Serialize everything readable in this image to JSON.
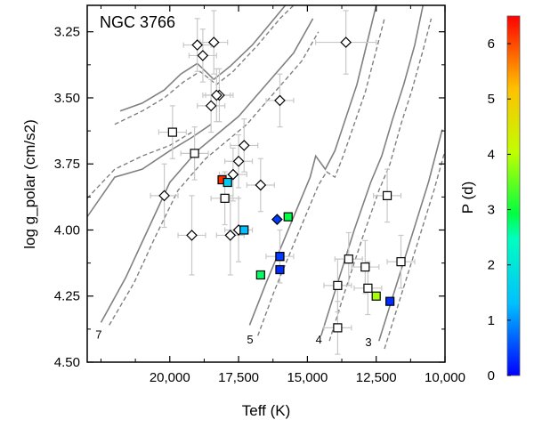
{
  "chart_data": {
    "type": "scatter",
    "title": "NGC 3766",
    "xlabel": "Teff (K)",
    "ylabel": "log g_polar (cm/s2)",
    "colorbar_label": "P (d)",
    "xlim": [
      23000,
      10000
    ],
    "ylim": [
      4.5,
      3.15
    ],
    "x_reversed": true,
    "y_reversed": true,
    "x_ticks": [
      20000,
      17500,
      15000,
      12500,
      10000
    ],
    "x_tick_labels": [
      "20,000",
      "17,500",
      "15,000",
      "12,500",
      "10,000"
    ],
    "y_ticks": [
      3.25,
      3.5,
      3.75,
      4.0,
      4.25,
      4.5
    ],
    "y_tick_labels": [
      "3.25",
      "3.50",
      "3.75",
      "4.00",
      "4.25",
      "4.50"
    ],
    "colorbar_range": [
      0,
      6.5
    ],
    "colorbar_ticks": [
      0,
      1,
      2,
      3,
      4,
      5,
      6
    ],
    "colorbar_tick_labels": [
      "0",
      "1",
      "2",
      "3",
      "4",
      "5",
      "6"
    ],
    "track_labels": [
      {
        "text": "7",
        "x": 22700,
        "y": 4.41
      },
      {
        "text": "5",
        "x": 17200,
        "y": 4.43
      },
      {
        "text": "4",
        "x": 14700,
        "y": 4.43
      },
      {
        "text": "3",
        "x": 12900,
        "y": 4.44
      }
    ],
    "tracks": {
      "solid": [
        [
          [
            22500,
            4.35
          ],
          [
            21600,
            4.18
          ],
          [
            20800,
            4.0
          ],
          [
            20000,
            3.82
          ],
          [
            19000,
            3.7
          ],
          [
            17500,
            3.57
          ],
          [
            16500,
            3.45
          ],
          [
            15500,
            3.33
          ],
          [
            14800,
            3.2
          ]
        ],
        [
          [
            17100,
            4.36
          ],
          [
            16500,
            4.2
          ],
          [
            15900,
            4.05
          ],
          [
            15300,
            3.9
          ],
          [
            14900,
            3.8
          ],
          [
            14700,
            3.72
          ],
          [
            14350,
            3.77
          ],
          [
            14000,
            3.7
          ],
          [
            13200,
            3.45
          ],
          [
            12500,
            3.15
          ]
        ],
        [
          [
            14500,
            4.4
          ],
          [
            13900,
            4.2
          ],
          [
            13300,
            4.0
          ],
          [
            12700,
            3.82
          ],
          [
            12300,
            3.72
          ],
          [
            11900,
            3.58
          ],
          [
            11500,
            3.45
          ],
          [
            11100,
            3.3
          ],
          [
            10800,
            3.15
          ]
        ],
        [
          [
            12400,
            4.42
          ],
          [
            11800,
            4.22
          ],
          [
            11200,
            4.02
          ],
          [
            10600,
            3.82
          ],
          [
            10100,
            3.62
          ]
        ],
        [
          [
            21800,
            3.55
          ],
          [
            21000,
            3.52
          ],
          [
            20200,
            3.47
          ],
          [
            19600,
            3.41
          ],
          [
            19000,
            3.37
          ],
          [
            18400,
            3.43
          ],
          [
            17800,
            3.38
          ],
          [
            17000,
            3.3
          ],
          [
            16200,
            3.2
          ],
          [
            15800,
            3.15
          ]
        ],
        [
          [
            23000,
            3.95
          ],
          [
            22000,
            3.8
          ],
          [
            21000,
            3.77
          ],
          [
            20000,
            3.7
          ],
          [
            19200,
            3.65
          ],
          [
            18500,
            3.6
          ]
        ]
      ],
      "dashed": [
        [
          [
            22200,
            4.36
          ],
          [
            21300,
            4.2
          ],
          [
            20500,
            4.02
          ],
          [
            19700,
            3.85
          ],
          [
            18700,
            3.73
          ],
          [
            17200,
            3.6
          ],
          [
            16200,
            3.48
          ],
          [
            15200,
            3.36
          ],
          [
            14600,
            3.25
          ]
        ],
        [
          [
            16800,
            4.4
          ],
          [
            16200,
            4.23
          ],
          [
            15600,
            4.08
          ],
          [
            15000,
            3.93
          ],
          [
            14600,
            3.83
          ],
          [
            14300,
            3.78
          ],
          [
            14000,
            3.8
          ],
          [
            13700,
            3.72
          ],
          [
            12900,
            3.48
          ],
          [
            12200,
            3.2
          ]
        ],
        [
          [
            14200,
            4.42
          ],
          [
            13600,
            4.22
          ],
          [
            13000,
            4.03
          ],
          [
            12400,
            3.85
          ],
          [
            12000,
            3.75
          ],
          [
            11600,
            3.6
          ],
          [
            11200,
            3.47
          ],
          [
            10800,
            3.32
          ],
          [
            10500,
            3.2
          ]
        ],
        [
          [
            12200,
            4.45
          ],
          [
            11600,
            4.25
          ],
          [
            11000,
            4.05
          ],
          [
            10400,
            3.85
          ],
          [
            10000,
            3.7
          ]
        ],
        [
          [
            22000,
            3.6
          ],
          [
            21000,
            3.55
          ],
          [
            20200,
            3.5
          ],
          [
            19500,
            3.44
          ],
          [
            18900,
            3.4
          ],
          [
            18300,
            3.45
          ],
          [
            17700,
            3.4
          ],
          [
            16800,
            3.3
          ],
          [
            16000,
            3.2
          ],
          [
            15500,
            3.15
          ]
        ],
        [
          [
            23000,
            3.88
          ],
          [
            22000,
            3.77
          ],
          [
            21000,
            3.72
          ],
          [
            20000,
            3.68
          ],
          [
            19200,
            3.63
          ]
        ]
      ]
    },
    "series": [
      {
        "marker": "diamond",
        "fill": "open",
        "points": [
          {
            "x": 19000,
            "y": 3.3,
            "xerr": 500,
            "yerr": 0.1
          },
          {
            "x": 18800,
            "y": 3.34,
            "xerr": 500,
            "yerr": 0.1
          },
          {
            "x": 18400,
            "y": 3.29,
            "xerr": 500,
            "yerr": 0.12
          },
          {
            "x": 18200,
            "y": 3.49,
            "xerr": 500,
            "yerr": 0.1
          },
          {
            "x": 18500,
            "y": 3.53,
            "xerr": 500,
            "yerr": 0.1
          },
          {
            "x": 18300,
            "y": 3.49,
            "xerr": 500,
            "yerr": 0.1
          },
          {
            "x": 17300,
            "y": 3.68,
            "xerr": 500,
            "yerr": 0.1
          },
          {
            "x": 17500,
            "y": 3.74,
            "xerr": 500,
            "yerr": 0.1
          },
          {
            "x": 17700,
            "y": 3.79,
            "xerr": 500,
            "yerr": 0.1
          },
          {
            "x": 16700,
            "y": 3.83,
            "xerr": 500,
            "yerr": 0.1
          },
          {
            "x": 16000,
            "y": 3.51,
            "xerr": 500,
            "yerr": 0.1
          },
          {
            "x": 20200,
            "y": 3.87,
            "xerr": 500,
            "yerr": 0.12
          },
          {
            "x": 19200,
            "y": 4.02,
            "xerr": 500,
            "yerr": 0.15
          },
          {
            "x": 17500,
            "y": 4.0,
            "xerr": 500,
            "yerr": 0.12
          },
          {
            "x": 17800,
            "y": 4.02,
            "xerr": 500,
            "yerr": 0.15
          },
          {
            "x": 13600,
            "y": 3.29,
            "xerr": 1100,
            "yerr": 0.12
          }
        ]
      },
      {
        "marker": "square",
        "fill": "open",
        "points": [
          {
            "x": 19900,
            "y": 3.63,
            "xerr": 500,
            "yerr": 0.1
          },
          {
            "x": 19100,
            "y": 3.71,
            "xerr": 500,
            "yerr": 0.1
          },
          {
            "x": 18000,
            "y": 3.88,
            "xerr": 500,
            "yerr": 0.1
          },
          {
            "x": 16000,
            "y": 4.1,
            "xerr": 500,
            "yerr": 0.1
          },
          {
            "x": 13900,
            "y": 4.37,
            "xerr": 500,
            "yerr": 0.1
          },
          {
            "x": 13500,
            "y": 4.11,
            "xerr": 500,
            "yerr": 0.1
          },
          {
            "x": 13900,
            "y": 4.21,
            "xerr": 500,
            "yerr": 0.1
          },
          {
            "x": 12900,
            "y": 4.14,
            "xerr": 500,
            "yerr": 0.1
          },
          {
            "x": 12800,
            "y": 4.22,
            "xerr": 500,
            "yerr": 0.1
          },
          {
            "x": 11600,
            "y": 4.12,
            "xerr": 500,
            "yerr": 0.1
          },
          {
            "x": 12100,
            "y": 3.87,
            "xerr": 500,
            "yerr": 0.1
          }
        ]
      },
      {
        "marker": "square",
        "fill": "colormap",
        "points": [
          {
            "x": 18100,
            "y": 3.81,
            "p": 6.2
          },
          {
            "x": 17900,
            "y": 3.82,
            "p": 1.5
          },
          {
            "x": 17300,
            "y": 4.0,
            "p": 1.3
          },
          {
            "x": 16700,
            "y": 4.17,
            "p": 2.8
          },
          {
            "x": 15700,
            "y": 3.95,
            "p": 2.9
          },
          {
            "x": 16000,
            "y": 4.1,
            "p": 0.4
          },
          {
            "x": 16000,
            "y": 4.15,
            "p": 0.3
          },
          {
            "x": 12500,
            "y": 4.25,
            "p": 3.9
          },
          {
            "x": 12000,
            "y": 4.27,
            "p": 0.3
          }
        ]
      },
      {
        "marker": "diamond",
        "fill": "colormap",
        "points": [
          {
            "x": 16100,
            "y": 3.96,
            "p": 0.4
          }
        ]
      }
    ]
  }
}
